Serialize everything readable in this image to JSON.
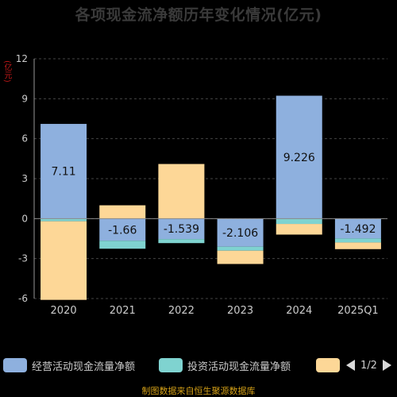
{
  "title": "各项现金流净额历年变化情况(亿元)",
  "unit_label": "(亿元)",
  "footer": "制图数据来自恒生聚源数据库",
  "legend": {
    "items": [
      {
        "label": "经营活动现金流量净额",
        "color": "#8eb0de"
      },
      {
        "label": "投资活动现金流量净额",
        "color": "#7fd3d0"
      },
      {
        "label": "",
        "color": "#fdd797"
      }
    ],
    "page": "1/2"
  },
  "chart_data": {
    "type": "bar",
    "stacked": true,
    "categories": [
      "2020",
      "2021",
      "2022",
      "2023",
      "2024",
      "2025Q1"
    ],
    "ylim": [
      -6,
      12
    ],
    "yticks": [
      -6,
      -3,
      0,
      3,
      6,
      9,
      12
    ],
    "grid": true,
    "series": [
      {
        "name": "经营活动现金流量净额",
        "color": "#8eb0de",
        "values": [
          7.11,
          -1.66,
          -1.539,
          -2.106,
          9.226,
          -1.492
        ],
        "labels": [
          "7.11",
          "-1.66",
          "-1.539",
          "-2.106",
          "9.226",
          "-1.492"
        ]
      },
      {
        "name": "投资活动现金流量净额",
        "color": "#7fd3d0",
        "values": [
          -0.2,
          -0.6,
          -0.3,
          -0.3,
          -0.4,
          -0.3
        ]
      },
      {
        "color": "#fdd797",
        "values": [
          -5.9,
          1.0,
          4.1,
          -1.0,
          -0.8,
          -0.5
        ]
      }
    ]
  }
}
